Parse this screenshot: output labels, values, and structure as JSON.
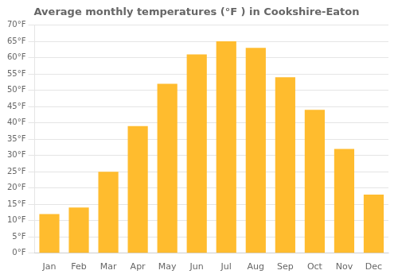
{
  "chart_data": {
    "type": "bar",
    "title": "Average monthly temperatures (°F ) in Cookshire-Eaton",
    "categories": [
      "Jan",
      "Feb",
      "Mar",
      "Apr",
      "May",
      "Jun",
      "Jul",
      "Aug",
      "Sep",
      "Oct",
      "Nov",
      "Dec"
    ],
    "values": [
      12,
      14,
      25,
      39,
      52,
      61,
      65,
      63,
      54,
      44,
      32,
      18
    ],
    "color": "#FFBC2E",
    "ylim": [
      0,
      70
    ],
    "yticks": [
      {
        "value": 0,
        "label": "0°F"
      },
      {
        "value": 5,
        "label": "5°F"
      },
      {
        "value": 10,
        "label": "10°F"
      },
      {
        "value": 15,
        "label": "15°F"
      },
      {
        "value": 20,
        "label": "20°F"
      },
      {
        "value": 25,
        "label": "25°F"
      },
      {
        "value": 30,
        "label": "30°F"
      },
      {
        "value": 35,
        "label": "35°F"
      },
      {
        "value": 40,
        "label": "40°F"
      },
      {
        "value": 45,
        "label": "45°F"
      },
      {
        "value": 50,
        "label": "50°F"
      },
      {
        "value": 55,
        "label": "55°F"
      },
      {
        "value": 60,
        "label": "60°F"
      },
      {
        "value": 65,
        "label": "65°F"
      },
      {
        "value": 70,
        "label": "70°F"
      }
    ],
    "grid": true
  }
}
